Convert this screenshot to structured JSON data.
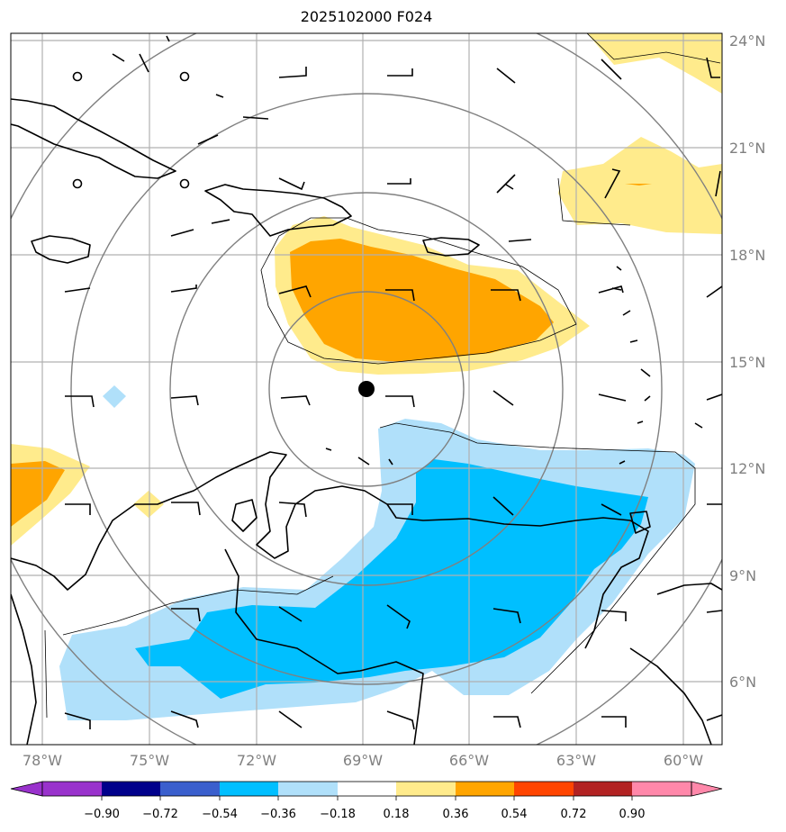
{
  "title": "2025102000 F024",
  "lat_labels": [
    "24°N",
    "21°N",
    "18°N",
    "15°N",
    "12°N",
    "9°N",
    "6°N"
  ],
  "lon_labels": [
    "78°W",
    "75°W",
    "72°W",
    "69°W",
    "66°W",
    "63°W",
    "60°W"
  ],
  "colorbar": {
    "ticks": [
      "−0.90",
      "−0.72",
      "−0.54",
      "−0.36",
      "−0.18",
      "0.18",
      "0.36",
      "0.54",
      "0.72",
      "0.90"
    ],
    "colors": [
      "#9932cc",
      "#00008b",
      "#3a5fcd",
      "#00bfff",
      "#b0e0fa",
      "#ffffff",
      "#ffeb8c",
      "#ffa500",
      "#ff4500",
      "#b22222",
      "#ff88aa"
    ],
    "extend": "both"
  },
  "center_marker": {
    "lat": 14.2,
    "lon": -68.9,
    "color": "#000000"
  },
  "colors": {
    "grid": "#b0b0b0",
    "range_rings": "#808080",
    "coastline": "#000000"
  }
}
